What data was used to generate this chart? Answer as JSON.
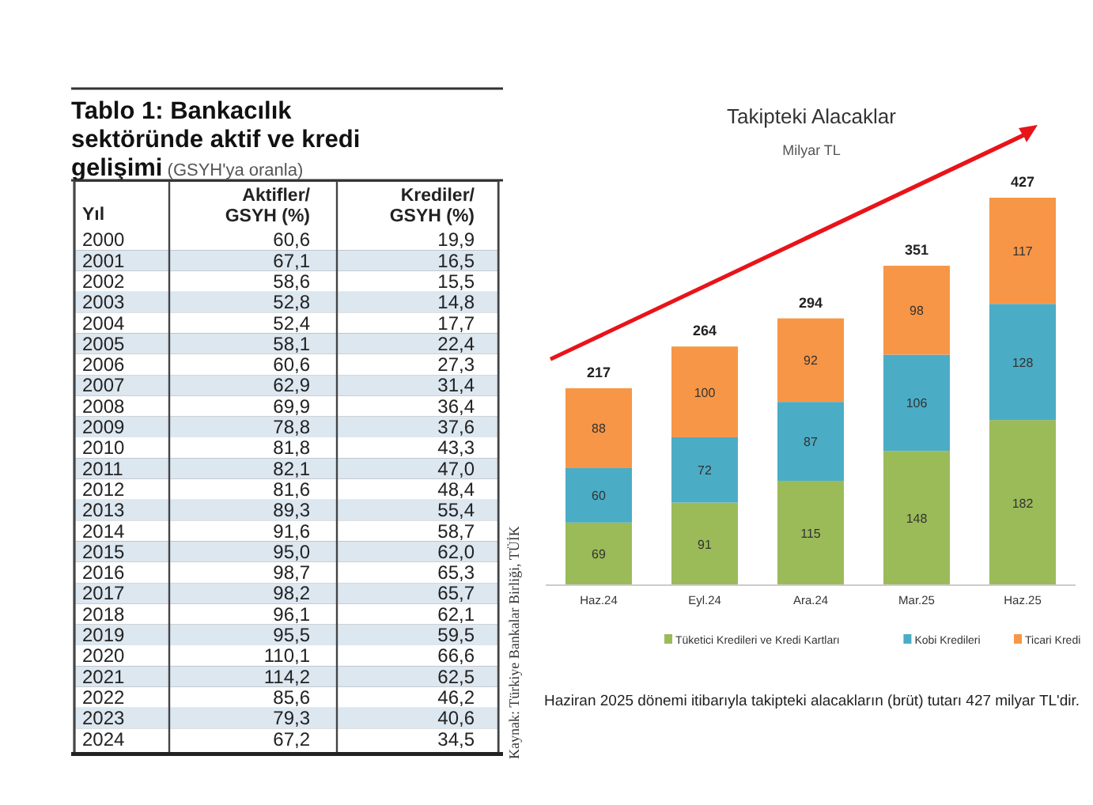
{
  "chart_data": [
    {
      "type": "heatmap",
      "title": "Tablo 1: Bankacılık sektöründe aktif ve kredi gelişimi",
      "subtitle": "(GSYH'ya oranla)",
      "ylabel": "Yıl",
      "categories": [
        "Aktifler/GSYH (%)",
        "Krediler/GSYH (%)"
      ],
      "y_categories": [
        "2000",
        "2001",
        "2002",
        "2003",
        "2004",
        "2005",
        "2006",
        "2007",
        "2008",
        "2009",
        "2010",
        "2011",
        "2012",
        "2013",
        "2014",
        "2015",
        "2016",
        "2017",
        "2018",
        "2019",
        "2020",
        "2021",
        "2022",
        "2023",
        "2024"
      ],
      "cells": [
        [
          60.6,
          19.9
        ],
        [
          67.1,
          16.5
        ],
        [
          58.6,
          15.5
        ],
        [
          52.8,
          14.8
        ],
        [
          52.4,
          17.7
        ],
        [
          58.1,
          22.4
        ],
        [
          60.6,
          27.3
        ],
        [
          62.9,
          31.4
        ],
        [
          69.9,
          36.4
        ],
        [
          78.8,
          37.6
        ],
        [
          81.8,
          43.3
        ],
        [
          82.1,
          47.0
        ],
        [
          81.6,
          48.4
        ],
        [
          89.3,
          55.4
        ],
        [
          91.6,
          58.7
        ],
        [
          95.0,
          62.0
        ],
        [
          98.7,
          65.3
        ],
        [
          98.2,
          65.7
        ],
        [
          96.1,
          62.1
        ],
        [
          95.5,
          59.5
        ],
        [
          110.1,
          66.6
        ],
        [
          114.2,
          62.5
        ],
        [
          85.6,
          46.2
        ],
        [
          79.3,
          40.6
        ],
        [
          67.2,
          34.5
        ]
      ],
      "cell_labels": [
        [
          "60,6",
          "19,9"
        ],
        [
          "67,1",
          "16,5"
        ],
        [
          "58,6",
          "15,5"
        ],
        [
          "52,8",
          "14,8"
        ],
        [
          "52,4",
          "17,7"
        ],
        [
          "58,1",
          "22,4"
        ],
        [
          "60,6",
          "27,3"
        ],
        [
          "62,9",
          "31,4"
        ],
        [
          "69,9",
          "36,4"
        ],
        [
          "78,8",
          "37,6"
        ],
        [
          "81,8",
          "43,3"
        ],
        [
          "82,1",
          "47,0"
        ],
        [
          "81,6",
          "48,4"
        ],
        [
          "89,3",
          "55,4"
        ],
        [
          "91,6",
          "58,7"
        ],
        [
          "95,0",
          "62,0"
        ],
        [
          "98,7",
          "65,3"
        ],
        [
          "98,2",
          "65,7"
        ],
        [
          "96,1",
          "62,1"
        ],
        [
          "95,5",
          "59,5"
        ],
        [
          "110,1",
          "66,6"
        ],
        [
          "114,2",
          "62,5"
        ],
        [
          "85,6",
          "46,2"
        ],
        [
          "79,3",
          "40,6"
        ],
        [
          "67,2",
          "34,5"
        ]
      ]
    },
    {
      "type": "bar",
      "stacked": true,
      "title": "Takipteki Alacaklar",
      "subtitle": "Milyar TL",
      "categories": [
        "Haz.24",
        "Eyl.24",
        "Ara.24",
        "Mar.25",
        "Haz.25"
      ],
      "series": [
        {
          "name": "Tüketici Kredileri ve Kredi Kartları",
          "color": "#9bbb59",
          "values": [
            69,
            91,
            115,
            148,
            182
          ]
        },
        {
          "name": "Kobi Kredileri",
          "color": "#4bacc6",
          "values": [
            60,
            72,
            87,
            106,
            128
          ]
        },
        {
          "name": "Ticari Kredi",
          "color": "#f79646",
          "values": [
            88,
            100,
            92,
            98,
            117
          ]
        }
      ],
      "totals": [
        "217",
        "264",
        "294",
        "351",
        "427"
      ],
      "data_labels": true,
      "legend": "bottom",
      "annotations": [
        "Haziran 2025 dönemi itibarıyla takipteki alacakların (brüt) tutarı 427 milyar TL'dir.",
        "Kaynak: Türkiye Bankalar Birliği, TÜİK"
      ]
    }
  ]
}
